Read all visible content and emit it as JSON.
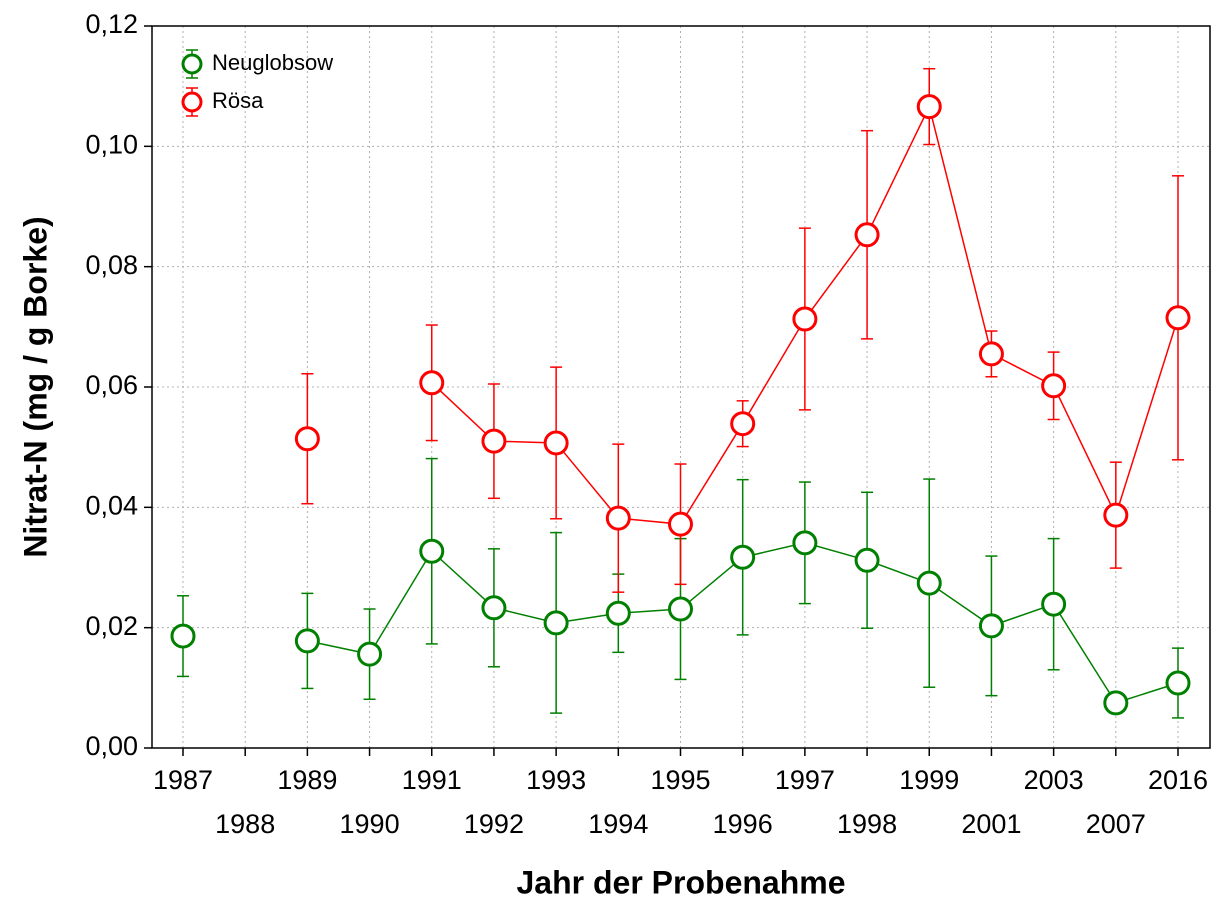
{
  "chart_data": {
    "type": "line",
    "x_label": "Jahr der Probenahme",
    "y_label": "Nitrat-N (mg / g Borke)",
    "categories": [
      "1987",
      "1988",
      "1989",
      "1990",
      "1991",
      "1992",
      "1993",
      "1994",
      "1995",
      "1996",
      "1997",
      "1998",
      "1999",
      "2001",
      "2003",
      "2007",
      "2016"
    ],
    "series": [
      {
        "name": "Neuglobsow",
        "color": "#008000",
        "values": [
          0.0186,
          null,
          0.0178,
          0.0156,
          0.0327,
          0.0233,
          0.0208,
          0.0224,
          0.0231,
          0.0317,
          0.0341,
          0.0312,
          0.0274,
          0.0203,
          0.0239,
          0.0075,
          0.0108
        ],
        "errors": [
          0.0067,
          null,
          0.0079,
          0.0075,
          0.0154,
          0.0098,
          0.015,
          0.0065,
          0.0117,
          0.0129,
          0.0101,
          0.0113,
          0.0173,
          0.0116,
          0.0109,
          0.001,
          0.0058
        ]
      },
      {
        "name": "Rösa",
        "color": "#ff0000",
        "values": [
          null,
          null,
          0.0514,
          null,
          0.0607,
          0.051,
          0.0507,
          0.0382,
          0.0372,
          0.0539,
          0.0713,
          0.0853,
          0.1066,
          0.0655,
          0.0602,
          0.0387,
          0.0715
        ],
        "errors": [
          null,
          null,
          0.0108,
          null,
          0.0096,
          0.0095,
          0.0126,
          0.0123,
          0.01,
          0.0038,
          0.0151,
          0.0173,
          0.0063,
          0.0038,
          0.0056,
          0.0088,
          0.0236
        ]
      }
    ],
    "ylim": [
      0,
      0.12
    ],
    "yticks": [
      {
        "value": 0,
        "label": "0,00"
      },
      {
        "value": 0.02,
        "label": "0,02"
      },
      {
        "value": 0.04,
        "label": "0,04"
      },
      {
        "value": 0.06,
        "label": "0,06"
      },
      {
        "value": 0.08,
        "label": "0,08"
      },
      {
        "value": 0.1,
        "label": "0,10"
      },
      {
        "value": 0.12,
        "label": "0,12"
      }
    ],
    "grid": true,
    "legend": "upper left"
  }
}
